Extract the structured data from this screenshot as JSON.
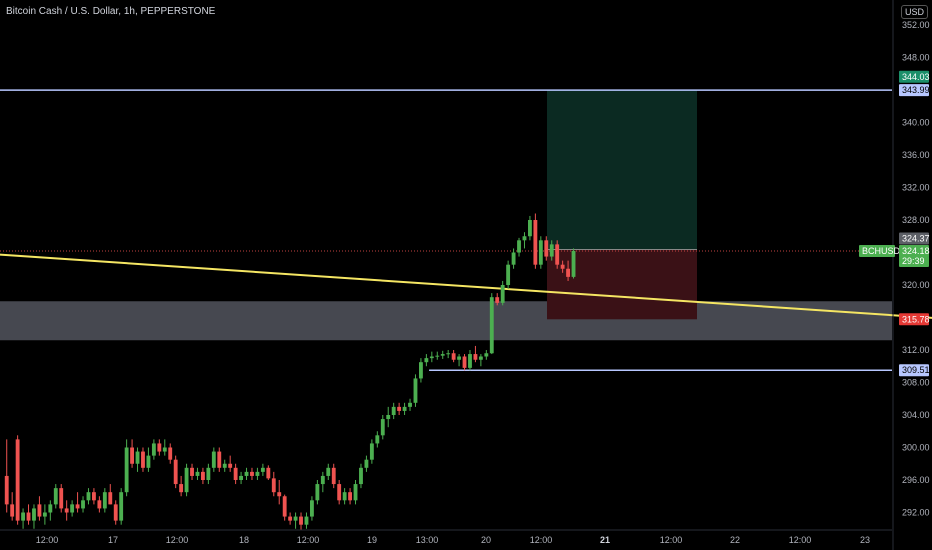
{
  "header": {
    "title": "Bitcoin Cash / U.S. Dollar, 1h, PEPPERSTONE",
    "currency_button": "USD"
  },
  "colors": {
    "up": "#26a69a",
    "up_bright": "#4caf50",
    "down": "#ef5350",
    "trendline": "#f5e663",
    "horizontal_line": "#b7c7ff",
    "zone": "#5d606b",
    "target_zone": "#0b2a22",
    "stop_zone": "#3a1116"
  },
  "chart_data": {
    "type": "candlestick",
    "title": "Bitcoin Cash / U.S. Dollar, 1h, PEPPERSTONE",
    "ylim": [
      289,
      353
    ],
    "y_ticks": [
      "352.00",
      "348.00",
      "344.00",
      "340.00",
      "336.00",
      "332.00",
      "328.00",
      "324.00",
      "320.00",
      "316.00",
      "312.00",
      "308.00",
      "304.00",
      "300.00",
      "296.00",
      "292.00"
    ],
    "x_ticks": [
      "12:00",
      "17",
      "12:00",
      "18",
      "12:00",
      "19",
      "13:00",
      "20",
      "12:00",
      "21",
      "12:00",
      "22",
      "12:00",
      "23"
    ],
    "price_labels": {
      "target": "344.03",
      "line_upper": "343.99",
      "entry": "324.37",
      "symbol": "BCHUSD",
      "current": "324.18",
      "countdown": "29:39",
      "stop": "315.78",
      "line_lower": "309.51"
    },
    "levels": {
      "line_upper": 343.99,
      "target": 344.03,
      "entry": 324.37,
      "current": 324.18,
      "stop": 315.78,
      "line_lower": 309.51,
      "zone": [
        313.2,
        318.0
      ]
    },
    "trendline": {
      "from": {
        "bar": -2,
        "price": 323.8
      },
      "to": {
        "bar": 200,
        "price": 314.6
      }
    },
    "candles": [
      [
        296.5,
        301,
        292,
        293
      ],
      [
        293,
        294.5,
        291,
        291.5
      ],
      [
        301,
        301.5,
        290.5,
        291
      ],
      [
        291,
        292.5,
        290,
        292
      ],
      [
        292,
        293,
        290.5,
        291
      ],
      [
        291,
        293,
        290,
        292.5
      ],
      [
        293,
        294,
        291,
        291.5
      ],
      [
        291.5,
        293,
        290.5,
        292
      ],
      [
        292,
        293.5,
        291,
        293
      ],
      [
        293,
        295.5,
        292.5,
        295
      ],
      [
        295,
        295.5,
        292,
        292.5
      ],
      [
        292.5,
        293.5,
        291,
        292
      ],
      [
        292,
        293.5,
        291.5,
        293
      ],
      [
        293,
        294.5,
        292,
        292.5
      ],
      [
        292.5,
        294,
        292,
        293.5
      ],
      [
        293.5,
        295,
        293,
        294.5
      ],
      [
        294.5,
        295,
        293,
        293.5
      ],
      [
        293.5,
        294,
        292,
        292.5
      ],
      [
        292.5,
        295,
        292,
        294.5
      ],
      [
        294.5,
        295.5,
        293,
        293
      ],
      [
        293,
        293.5,
        290.5,
        291
      ],
      [
        291,
        295,
        290.5,
        294.5
      ],
      [
        294.5,
        301,
        294,
        300
      ],
      [
        300,
        301,
        297.5,
        298
      ],
      [
        298,
        300,
        297,
        299.5
      ],
      [
        299.5,
        300,
        297,
        297.5
      ],
      [
        297.5,
        300,
        297,
        299
      ],
      [
        299,
        301,
        298.5,
        300.5
      ],
      [
        300.5,
        301,
        299,
        299.5
      ],
      [
        299.5,
        301,
        299,
        300
      ],
      [
        300,
        300.5,
        298,
        298.5
      ],
      [
        298.5,
        299,
        295,
        295.5
      ],
      [
        295.5,
        296.5,
        294,
        294.5
      ],
      [
        294.5,
        298,
        294,
        297.5
      ],
      [
        297.5,
        298,
        296,
        296.5
      ],
      [
        296.5,
        297.5,
        296,
        297
      ],
      [
        297,
        297.5,
        295.5,
        296
      ],
      [
        296,
        298,
        295.5,
        297.5
      ],
      [
        297.5,
        300,
        297,
        299.5
      ],
      [
        299.5,
        300,
        297,
        297.5
      ],
      [
        297.5,
        298.5,
        297,
        298
      ],
      [
        298,
        299,
        297,
        297.5
      ],
      [
        297.5,
        298,
        295.5,
        296
      ],
      [
        296,
        297,
        295.5,
        296.5
      ],
      [
        296.5,
        297.5,
        296,
        297
      ],
      [
        297,
        297.5,
        296,
        296.5
      ],
      [
        296.5,
        297.5,
        296,
        297
      ],
      [
        297,
        298,
        296.5,
        297.5
      ],
      [
        297.5,
        297.8,
        296,
        296.2
      ],
      [
        296.2,
        297,
        294,
        294.5
      ],
      [
        294.5,
        296,
        293,
        294
      ],
      [
        294,
        294.2,
        291,
        291.5
      ],
      [
        291.5,
        292,
        290.5,
        291
      ],
      [
        291,
        292,
        290,
        291.5
      ],
      [
        291.5,
        292,
        289.8,
        290.5
      ],
      [
        290.5,
        292,
        290,
        291.5
      ],
      [
        291.5,
        294,
        291,
        293.5
      ],
      [
        293.5,
        296,
        293,
        295.5
      ],
      [
        295.5,
        297,
        294.5,
        296.5
      ],
      [
        296.5,
        298,
        296,
        297.5
      ],
      [
        297.5,
        298,
        295,
        295.5
      ],
      [
        295.5,
        296,
        293,
        293.5
      ],
      [
        293.5,
        295,
        293,
        294.5
      ],
      [
        294.5,
        295,
        293,
        293.5
      ],
      [
        293.5,
        296,
        293,
        295.5
      ],
      [
        295.5,
        298,
        295,
        297.5
      ],
      [
        297.5,
        299,
        297,
        298.5
      ],
      [
        298.5,
        301,
        298,
        300.5
      ],
      [
        300.5,
        302,
        300,
        301.5
      ],
      [
        301.5,
        304,
        301,
        303.5
      ],
      [
        303.5,
        305,
        302.5,
        304
      ],
      [
        304,
        305.5,
        303.5,
        305
      ],
      [
        305,
        305.5,
        304,
        304.5
      ],
      [
        304.5,
        305.5,
        304,
        305
      ],
      [
        305,
        306,
        304.5,
        305.5
      ],
      [
        305.5,
        309,
        305,
        308.5
      ],
      [
        308.5,
        311,
        308,
        310.5
      ],
      [
        310.5,
        311.5,
        310,
        311
      ],
      [
        311,
        311.8,
        310.5,
        311.2
      ],
      [
        311.2,
        311.8,
        310.8,
        311.3
      ],
      [
        311.3,
        311.9,
        310.9,
        311.5
      ],
      [
        311.5,
        312,
        311,
        311.6
      ],
      [
        311.6,
        312,
        310.5,
        310.8
      ],
      [
        310.8,
        311.5,
        310,
        311.2
      ],
      [
        311.2,
        311.5,
        309.5,
        309.8
      ],
      [
        309.8,
        312,
        309.5,
        311.5
      ],
      [
        311.5,
        312.5,
        310.5,
        310.8
      ],
      [
        310.8,
        311.5,
        310,
        311.2
      ],
      [
        311.2,
        312,
        310.8,
        311.6
      ],
      [
        311.6,
        319,
        311.5,
        318.5
      ],
      [
        318.5,
        319,
        317.5,
        317.8
      ],
      [
        317.8,
        320.5,
        317.5,
        320
      ],
      [
        320,
        323,
        319.5,
        322.5
      ],
      [
        322.5,
        324.5,
        322,
        324
      ],
      [
        324,
        325.8,
        323.5,
        325.5
      ],
      [
        325.5,
        326.5,
        324.5,
        326
      ],
      [
        326,
        328.5,
        325.5,
        328
      ],
      [
        328,
        328.8,
        322,
        322.5
      ],
      [
        322.5,
        326,
        322,
        325.5
      ],
      [
        325.5,
        326,
        323,
        323.5
      ],
      [
        323.5,
        325.5,
        323,
        325
      ],
      [
        325,
        325.5,
        322,
        322.5
      ],
      [
        322.5,
        323,
        321.5,
        322
      ],
      [
        322,
        323,
        320.5,
        321
      ],
      [
        321,
        324.5,
        320.8,
        324.2
      ]
    ]
  }
}
